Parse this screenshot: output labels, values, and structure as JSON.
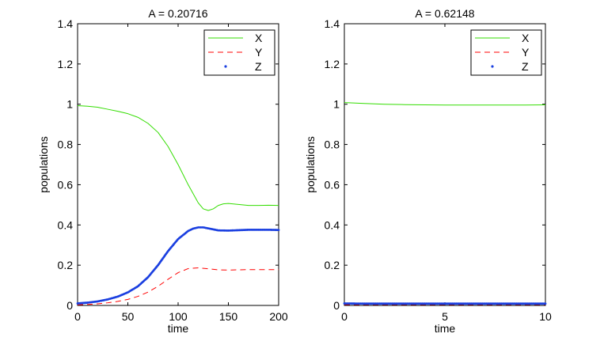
{
  "chart_data": [
    {
      "type": "line",
      "title": "A = 0.20716",
      "xlabel": "time",
      "ylabel": "populations",
      "xlim": [
        0,
        200
      ],
      "ylim": [
        0,
        1.4
      ],
      "xticks": [
        0,
        50,
        100,
        150,
        200
      ],
      "yticks": [
        0,
        0.2,
        0.4,
        0.6,
        0.8,
        1,
        1.2,
        1.4
      ],
      "xtick_labels": [
        "0",
        "50",
        "100",
        "150",
        "200"
      ],
      "ytick_labels": [
        "0",
        "0.2",
        "0.4",
        "0.6",
        "0.8",
        "1",
        "1.2",
        "1.4"
      ],
      "legend": [
        "X",
        "Y",
        "Z"
      ],
      "legend_position": "top-right",
      "series": [
        {
          "name": "X",
          "color": "#33dd00",
          "style": "solid",
          "x": [
            0,
            10,
            20,
            30,
            40,
            50,
            60,
            70,
            80,
            90,
            100,
            110,
            120,
            125,
            130,
            135,
            140,
            145,
            150,
            160,
            170,
            180,
            190,
            200
          ],
          "y": [
            0.993,
            0.99,
            0.985,
            0.975,
            0.965,
            0.953,
            0.935,
            0.905,
            0.86,
            0.79,
            0.7,
            0.6,
            0.51,
            0.48,
            0.472,
            0.48,
            0.497,
            0.505,
            0.507,
            0.502,
            0.497,
            0.497,
            0.498,
            0.497
          ]
        },
        {
          "name": "Y",
          "color": "#ff0000",
          "style": "dashed",
          "x": [
            0,
            10,
            20,
            30,
            40,
            50,
            60,
            70,
            80,
            90,
            100,
            110,
            120,
            130,
            140,
            150,
            160,
            170,
            180,
            190,
            200
          ],
          "y": [
            0.003,
            0.005,
            0.008,
            0.013,
            0.02,
            0.03,
            0.045,
            0.066,
            0.095,
            0.13,
            0.163,
            0.183,
            0.187,
            0.182,
            0.177,
            0.176,
            0.177,
            0.178,
            0.178,
            0.178,
            0.178
          ]
        },
        {
          "name": "Z",
          "color": "#1a3fe0",
          "style": "dots",
          "x": [
            0,
            10,
            20,
            30,
            40,
            50,
            60,
            70,
            80,
            90,
            100,
            110,
            115,
            120,
            125,
            130,
            140,
            150,
            160,
            170,
            180,
            190,
            200
          ],
          "y": [
            0.01,
            0.014,
            0.02,
            0.03,
            0.044,
            0.065,
            0.095,
            0.14,
            0.2,
            0.27,
            0.33,
            0.37,
            0.382,
            0.388,
            0.388,
            0.383,
            0.373,
            0.372,
            0.374,
            0.376,
            0.376,
            0.376,
            0.375
          ]
        }
      ]
    },
    {
      "type": "line",
      "title": "A = 0.62148",
      "xlabel": "time",
      "ylabel": "populations",
      "xlim": [
        0,
        10
      ],
      "ylim": [
        0,
        1.4
      ],
      "xticks": [
        0,
        5,
        10
      ],
      "yticks": [
        0,
        0.2,
        0.4,
        0.6,
        0.8,
        1,
        1.2,
        1.4
      ],
      "xtick_labels": [
        "0",
        "5",
        "10"
      ],
      "ytick_labels": [
        "0",
        "0.2",
        "0.4",
        "0.6",
        "0.8",
        "1",
        "1.2",
        "1.4"
      ],
      "legend": [
        "X",
        "Y",
        "Z"
      ],
      "legend_position": "top-right",
      "series": [
        {
          "name": "X",
          "color": "#33dd00",
          "style": "solid",
          "x": [
            0,
            1,
            2,
            3,
            4,
            5,
            6,
            7,
            8,
            9,
            10
          ],
          "y": [
            1.008,
            1.004,
            1.0,
            0.998,
            0.997,
            0.996,
            0.996,
            0.996,
            0.996,
            0.996,
            0.997
          ]
        },
        {
          "name": "Y",
          "color": "#ff0000",
          "style": "dashed",
          "x": [
            0,
            1,
            2,
            3,
            4,
            5,
            6,
            7,
            8,
            9,
            10
          ],
          "y": [
            0.004,
            0.004,
            0.004,
            0.004,
            0.004,
            0.004,
            0.004,
            0.004,
            0.004,
            0.004,
            0.004
          ]
        },
        {
          "name": "Z",
          "color": "#1a3fe0",
          "style": "dots",
          "x": [
            0,
            1,
            2,
            3,
            4,
            5,
            6,
            7,
            8,
            9,
            10
          ],
          "y": [
            0.01,
            0.009,
            0.009,
            0.009,
            0.009,
            0.009,
            0.009,
            0.009,
            0.009,
            0.009,
            0.009
          ]
        }
      ]
    }
  ]
}
